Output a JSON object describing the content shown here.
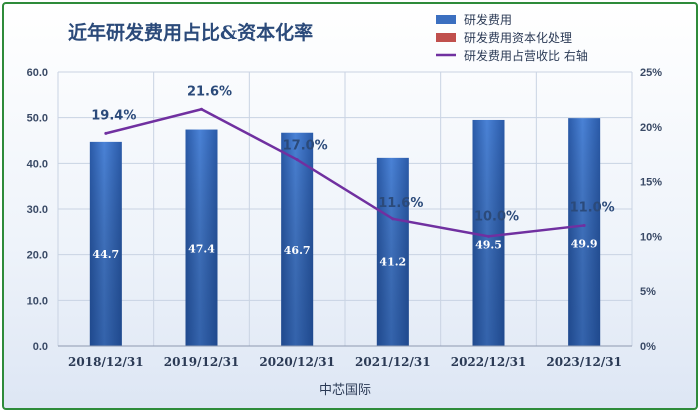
{
  "chart_data": {
    "type": "bar",
    "title": "近年研发费用占比&资本化率",
    "xlabel": "中芯国际",
    "categories": [
      "2018/12/31",
      "2019/12/31",
      "2020/12/31",
      "2021/12/31",
      "2022/12/31",
      "2023/12/31"
    ],
    "series": [
      {
        "name": "研发费用",
        "type": "bar",
        "axis": "left",
        "values": [
          44.7,
          47.4,
          46.7,
          41.2,
          49.5,
          49.9
        ],
        "labels": [
          "44.7",
          "47.4",
          "46.7",
          "41.2",
          "49.5",
          "49.9"
        ]
      },
      {
        "name": "研发费用资本化处理",
        "type": "bar",
        "axis": "left",
        "values": [
          0,
          0,
          0,
          0,
          0,
          0
        ]
      },
      {
        "name": "研发费用占营收比 右轴",
        "type": "line",
        "axis": "right",
        "values": [
          19.4,
          21.6,
          17.0,
          11.6,
          10.0,
          11.0
        ],
        "labels": [
          "19.4%",
          "21.6%",
          "17.0%",
          "11.6%",
          "10.0%",
          "11.0%"
        ]
      }
    ],
    "ylim": [
      0,
      60
    ],
    "yticks": [
      "0.0",
      "10.0",
      "20.0",
      "30.0",
      "40.0",
      "50.0",
      "60.0"
    ],
    "y2lim": [
      0,
      25
    ],
    "y2ticks": [
      "0%",
      "5%",
      "10%",
      "15%",
      "20%",
      "25%"
    ],
    "legend_position": "top-right",
    "grid": true,
    "colors": {
      "bar": "#3b6fc0",
      "capitalized": "#c0504d",
      "line": "#7030a0"
    }
  }
}
